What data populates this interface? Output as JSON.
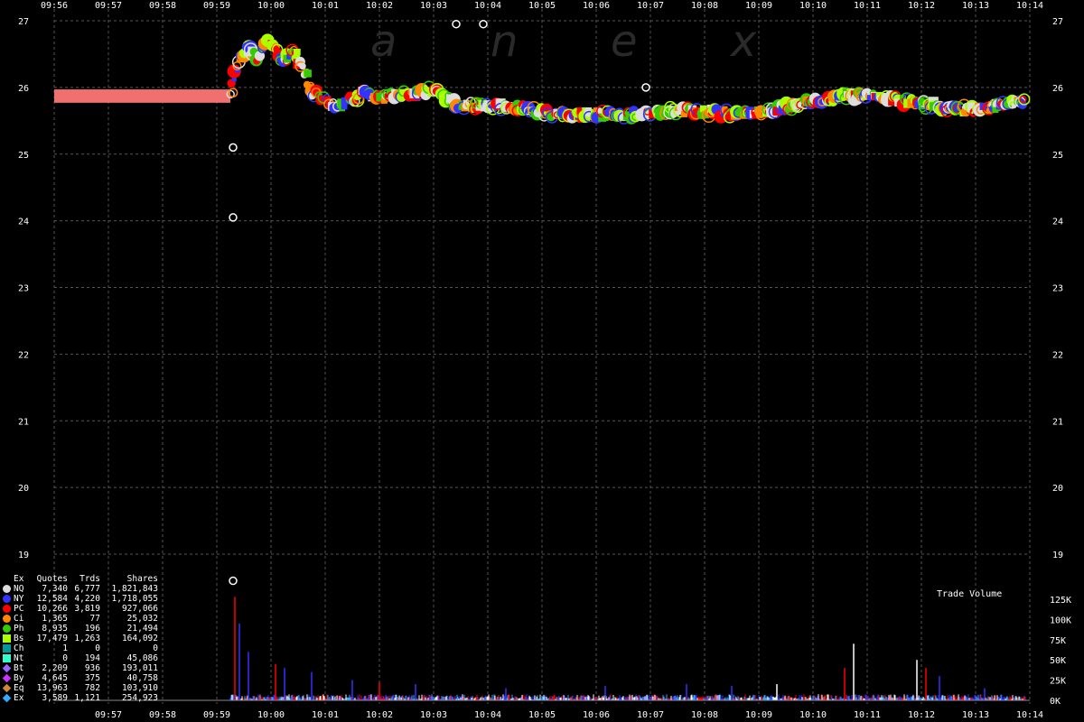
{
  "watermark": [
    "a",
    "n",
    "e",
    "x"
  ],
  "volume_title": "Trade Volume",
  "legend_header": {
    "ex": "Ex",
    "quotes": "Quotes",
    "trades": "Trds",
    "shares": "Shares"
  },
  "legend": [
    {
      "ex": "NQ",
      "quotes": "7,340",
      "trades": "6,777",
      "shares": "1,821,843",
      "color": "#dddddd",
      "shape": "circle"
    },
    {
      "ex": "NY",
      "quotes": "12,584",
      "trades": "4,220",
      "shares": "1,718,055",
      "color": "#3333ff",
      "shape": "circle"
    },
    {
      "ex": "PC",
      "quotes": "10,266",
      "trades": "3,819",
      "shares": "927,066",
      "color": "#ff0000",
      "shape": "circle"
    },
    {
      "ex": "Ci",
      "quotes": "1,365",
      "trades": "77",
      "shares": "25,032",
      "color": "#ff8800",
      "shape": "circle"
    },
    {
      "ex": "Ph",
      "quotes": "8,935",
      "trades": "196",
      "shares": "21,494",
      "color": "#33cc00",
      "shape": "circle"
    },
    {
      "ex": "Bs",
      "quotes": "17,479",
      "trades": "1,263",
      "shares": "164,092",
      "color": "#aaff00",
      "shape": "square"
    },
    {
      "ex": "Ch",
      "quotes": "1",
      "trades": "0",
      "shares": "0",
      "color": "#009999",
      "shape": "square"
    },
    {
      "ex": "Nt",
      "quotes": "0",
      "trades": "194",
      "shares": "45,086",
      "color": "#33ffcc",
      "shape": "square"
    },
    {
      "ex": "Bt",
      "quotes": "2,209",
      "trades": "936",
      "shares": "193,011",
      "color": "#9966ff",
      "shape": "diamond"
    },
    {
      "ex": "By",
      "quotes": "4,645",
      "trades": "375",
      "shares": "40,758",
      "color": "#cc33ff",
      "shape": "diamond"
    },
    {
      "ex": "Eq",
      "quotes": "13,963",
      "trades": "782",
      "shares": "103,910",
      "color": "#cc8833",
      "shape": "diamond"
    },
    {
      "ex": "Ex",
      "quotes": "3,589",
      "trades": "1,121",
      "shares": "254,923",
      "color": "#33aaff",
      "shape": "diamond"
    }
  ],
  "chart_data": [
    {
      "type": "scatter",
      "x_top_ticks": [
        "09:56",
        "09:57",
        "09:58",
        "09:59",
        "10:00",
        "10:01",
        "10:02",
        "10:03",
        "10:04",
        "10:05",
        "10:06",
        "10:07",
        "10:08",
        "10:09",
        "10:10",
        "10:11",
        "10:12",
        "10:13",
        "10:14"
      ],
      "x_bottom_ticks": [
        "09:57",
        "09:58",
        "09:59",
        "10:00",
        "10:01",
        "10:02",
        "10:03",
        "10:04",
        "10:05",
        "10:06",
        "10:07",
        "10:08",
        "10:09",
        "10:10",
        "10:11",
        "10:12",
        "10:13",
        "10:14"
      ],
      "y_ticks": [
        19,
        20,
        21,
        22,
        23,
        24,
        25,
        26,
        27
      ],
      "ylim": [
        18.6,
        27.1
      ],
      "grid": true,
      "pre_market_band": {
        "start": "09:56",
        "end": "09:59:15",
        "low": 25.77,
        "high": 25.97,
        "color": "#f07070"
      },
      "price_path": [
        [
          "09:59:15",
          25.9
        ],
        [
          "09:59:25",
          26.4
        ],
        [
          "09:59:35",
          26.6
        ],
        [
          "09:59:45",
          26.45
        ],
        [
          "09:59:55",
          26.7
        ],
        [
          "10:00:05",
          26.6
        ],
        [
          "10:00:15",
          26.4
        ],
        [
          "10:00:25",
          26.55
        ],
        [
          "10:00:35",
          26.3
        ],
        [
          "10:00:45",
          25.95
        ],
        [
          "10:01:00",
          25.8
        ],
        [
          "10:01:20",
          25.72
        ],
        [
          "10:01:40",
          25.9
        ],
        [
          "10:02:00",
          25.85
        ],
        [
          "10:02:30",
          25.9
        ],
        [
          "10:03:00",
          25.95
        ],
        [
          "10:03:30",
          25.72
        ],
        [
          "10:04:00",
          25.75
        ],
        [
          "10:04:30",
          25.7
        ],
        [
          "10:05:00",
          25.63
        ],
        [
          "10:05:30",
          25.58
        ],
        [
          "10:06:00",
          25.6
        ],
        [
          "10:06:30",
          25.58
        ],
        [
          "10:07:00",
          25.62
        ],
        [
          "10:07:30",
          25.65
        ],
        [
          "10:08:00",
          25.63
        ],
        [
          "10:08:30",
          25.6
        ],
        [
          "10:09:00",
          25.63
        ],
        [
          "10:09:30",
          25.7
        ],
        [
          "10:10:00",
          25.8
        ],
        [
          "10:10:30",
          25.85
        ],
        [
          "10:11:00",
          25.9
        ],
        [
          "10:11:30",
          25.82
        ],
        [
          "10:12:00",
          25.75
        ],
        [
          "10:12:30",
          25.7
        ],
        [
          "10:13:00",
          25.65
        ],
        [
          "10:13:30",
          25.75
        ],
        [
          "10:13:55",
          25.8
        ]
      ],
      "outlier_points": [
        [
          "09:59:18",
          25.1
        ],
        [
          "09:59:18",
          24.05
        ],
        [
          "09:59:18",
          18.6
        ],
        [
          "10:03:25",
          26.95
        ],
        [
          "10:03:55",
          26.95
        ],
        [
          "10:06:55",
          26.0
        ]
      ]
    },
    {
      "type": "bar",
      "title": "Trade Volume",
      "y_ticks": [
        "0K",
        "25K",
        "50K",
        "75K",
        "100K",
        "125K"
      ],
      "ylim": [
        0,
        125000
      ],
      "spikes": [
        {
          "t": "09:59:20",
          "v": 128000,
          "color": "#ff0000"
        },
        {
          "t": "09:59:25",
          "v": 95000,
          "color": "#3333ff"
        },
        {
          "t": "09:59:35",
          "v": 60000,
          "color": "#3333ff"
        },
        {
          "t": "10:00:05",
          "v": 45000,
          "color": "#ff0000"
        },
        {
          "t": "10:00:15",
          "v": 40000,
          "color": "#3333ff"
        },
        {
          "t": "10:00:45",
          "v": 35000,
          "color": "#3333ff"
        },
        {
          "t": "10:01:30",
          "v": 25000,
          "color": "#3333ff"
        },
        {
          "t": "10:02:00",
          "v": 22000,
          "color": "#ff0000"
        },
        {
          "t": "10:02:40",
          "v": 20000,
          "color": "#3333ff"
        },
        {
          "t": "10:04:20",
          "v": 15000,
          "color": "#3333ff"
        },
        {
          "t": "10:06:10",
          "v": 18000,
          "color": "#3333ff"
        },
        {
          "t": "10:07:40",
          "v": 20000,
          "color": "#3333ff"
        },
        {
          "t": "10:08:30",
          "v": 18000,
          "color": "#3333ff"
        },
        {
          "t": "10:09:20",
          "v": 20000,
          "color": "#ffffff"
        },
        {
          "t": "10:10:35",
          "v": 40000,
          "color": "#ff0000"
        },
        {
          "t": "10:10:45",
          "v": 70000,
          "color": "#ffffff"
        },
        {
          "t": "10:11:55",
          "v": 50000,
          "color": "#ffffff"
        },
        {
          "t": "10:12:05",
          "v": 40000,
          "color": "#ff0000"
        },
        {
          "t": "10:12:20",
          "v": 30000,
          "color": "#3333ff"
        },
        {
          "t": "10:13:10",
          "v": 15000,
          "color": "#3333ff"
        }
      ]
    }
  ]
}
